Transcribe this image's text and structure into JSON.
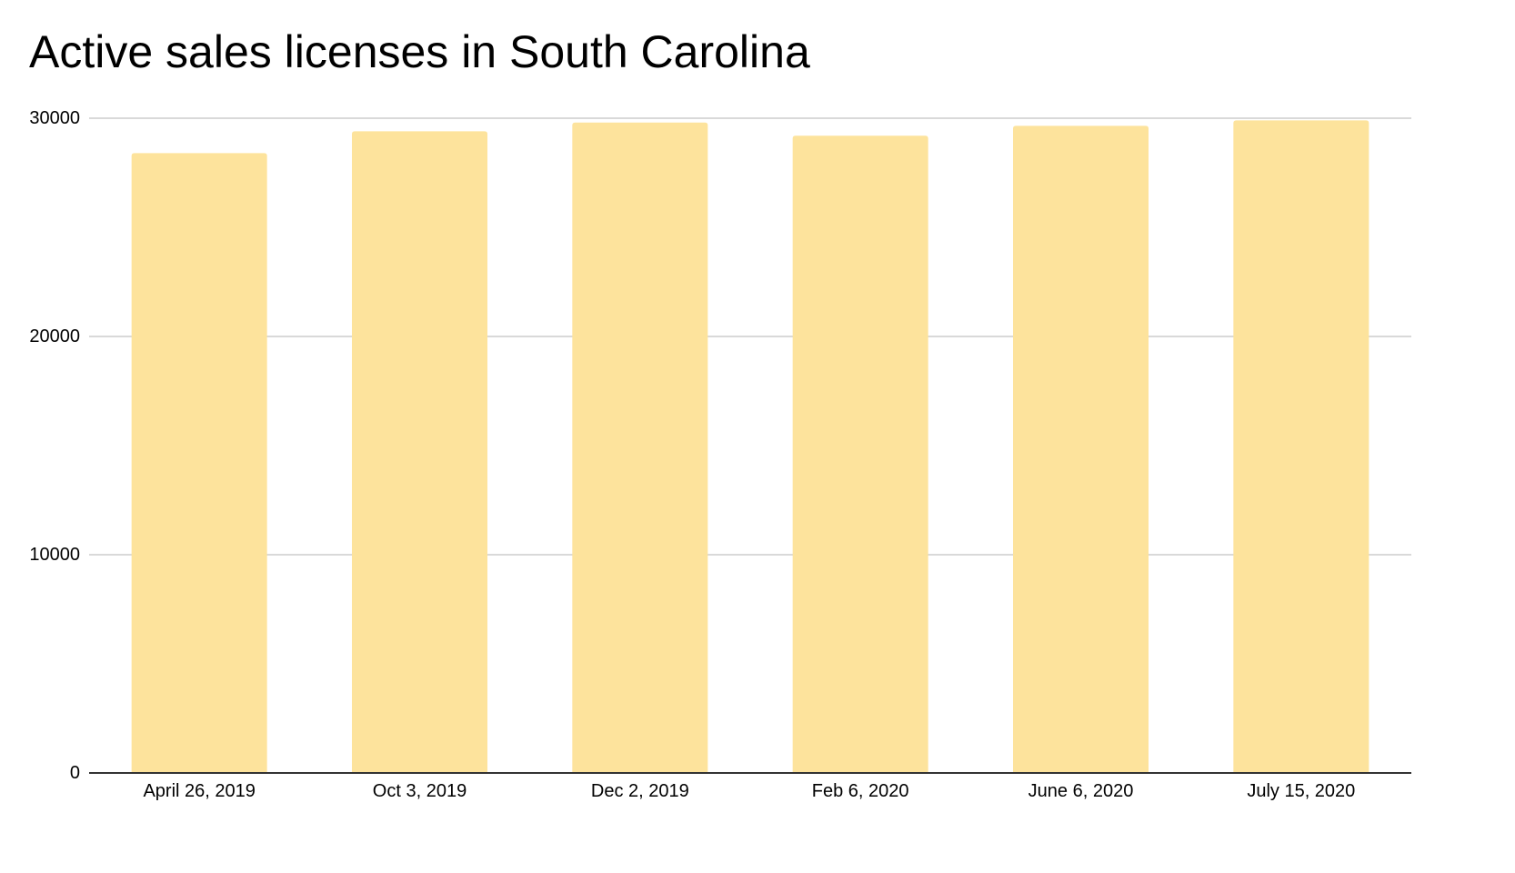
{
  "chart_data": {
    "type": "bar",
    "title": "Active sales licenses in South Carolina",
    "xlabel": "",
    "ylabel": "",
    "categories": [
      "April 26, 2019",
      "Oct 3, 2019",
      "Dec 2, 2019",
      "Feb 6, 2020",
      "June 6, 2020",
      "July 15, 2020"
    ],
    "values": [
      28400,
      29400,
      29800,
      29200,
      29650,
      29900
    ],
    "ylim": [
      0,
      30000
    ],
    "yticks": [
      0,
      10000,
      20000,
      30000
    ],
    "ytick_labels": [
      "0",
      "10000",
      "20000",
      "30000"
    ],
    "grid": true,
    "legend": "none",
    "colors": {
      "bar": "#FDE39C",
      "grid": "#D9D9D9",
      "axis": "#333333",
      "text": "#000000"
    }
  }
}
